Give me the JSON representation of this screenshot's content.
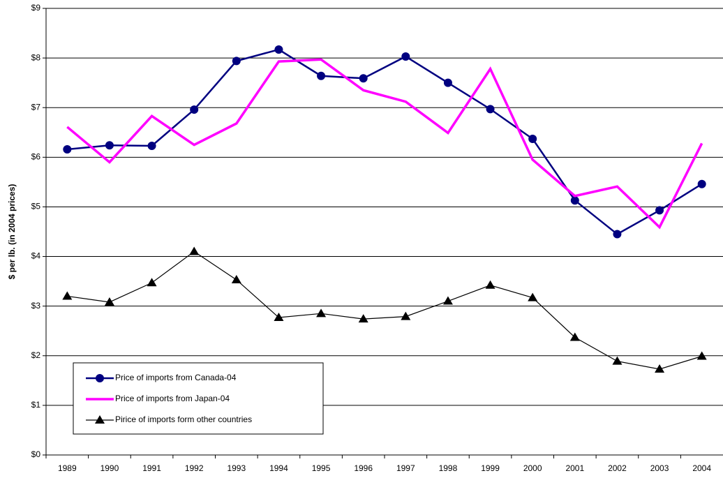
{
  "chart_data": {
    "type": "line",
    "y_label": "$ per lb. (in 2004 prices)",
    "categories": [
      "1989",
      "1990",
      "1991",
      "1992",
      "1993",
      "1994",
      "1995",
      "1996",
      "1997",
      "1998",
      "1999",
      "2000",
      "2001",
      "2002",
      "2003",
      "2004"
    ],
    "series": [
      {
        "name": "Price of imports from Canada-04",
        "color": "#000080",
        "marker": "circle",
        "values": [
          6.16,
          6.24,
          6.23,
          6.96,
          7.94,
          8.17,
          7.64,
          7.59,
          8.03,
          7.5,
          6.97,
          6.37,
          5.13,
          4.45,
          4.93,
          5.46
        ]
      },
      {
        "name": "Price of imports from Japan-04",
        "color": "#ff00ff",
        "marker": "none",
        "values": [
          6.61,
          5.9,
          6.83,
          6.25,
          6.68,
          7.93,
          7.97,
          7.35,
          7.12,
          6.49,
          7.78,
          5.95,
          5.22,
          5.41,
          4.59,
          6.28
        ]
      },
      {
        "name": "Pirice of imports form other countries",
        "color": "#000000",
        "marker": "triangle",
        "values": [
          3.2,
          3.08,
          3.47,
          4.1,
          3.53,
          2.77,
          2.85,
          2.74,
          2.79,
          3.1,
          3.42,
          3.17,
          2.37,
          1.89,
          1.73,
          1.99
        ]
      }
    ],
    "ylim": [
      0,
      9
    ],
    "yticks": [
      {
        "value": 0,
        "label": "$0"
      },
      {
        "value": 1,
        "label": "$1"
      },
      {
        "value": 2,
        "label": "$2"
      },
      {
        "value": 3,
        "label": "$3"
      },
      {
        "value": 4,
        "label": "$4"
      },
      {
        "value": 5,
        "label": "$5"
      },
      {
        "value": 6,
        "label": "$6"
      },
      {
        "value": 7,
        "label": "$7"
      },
      {
        "value": 8,
        "label": "$8"
      },
      {
        "value": 9,
        "label": "$9"
      }
    ],
    "grid": true,
    "legend": "lower left"
  }
}
